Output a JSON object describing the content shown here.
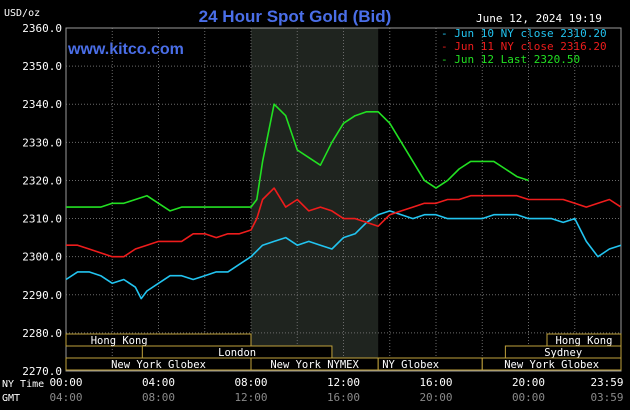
{
  "chart_data": {
    "type": "line",
    "title": "24 Hour Spot Gold (Bid)",
    "website": "www.kitco.com",
    "timestamp": "June 12, 2024 19:19",
    "ylabel": "USD/oz",
    "ylim": [
      2270,
      2360
    ],
    "y_ticks": [
      "2360.0",
      "2350.0",
      "2340.0",
      "2330.0",
      "2320.0",
      "2310.0",
      "2300.0",
      "2290.0",
      "2280.0",
      "2270.0"
    ],
    "x_axis_ny_label": "NY Time",
    "x_axis_gmt_label": "GMT",
    "x_ticks_ny": [
      "00:00",
      "04:00",
      "08:00",
      "12:00",
      "16:00",
      "20:00",
      "23:59"
    ],
    "x_ticks_gmt": [
      "04:00",
      "08:00",
      "12:00",
      "16:00",
      "20:00",
      "00:00",
      "03:59"
    ],
    "x_range_hours": [
      0,
      24
    ],
    "highlight_hours": [
      8.0,
      13.5
    ],
    "grid": true,
    "legend_position": "top-right",
    "series": [
      {
        "name": "Jun 10 NY close 2310.20",
        "color": "#22c4f0",
        "x": [
          0,
          0.5,
          1,
          1.5,
          2,
          2.5,
          3,
          3.25,
          3.5,
          4,
          4.5,
          5,
          5.5,
          6,
          6.5,
          7,
          7.5,
          8,
          8.5,
          9,
          9.5,
          10,
          10.5,
          11,
          11.5,
          12,
          12.5,
          13,
          13.5,
          14,
          14.5,
          15,
          15.5,
          16,
          16.5,
          17,
          17.5,
          18,
          18.5,
          19,
          19.5,
          20,
          20.5,
          21,
          21.5,
          22,
          22.5,
          23,
          23.5,
          24
        ],
        "y": [
          2294,
          2296,
          2296,
          2295,
          2293,
          2294,
          2292,
          2289,
          2291,
          2293,
          2295,
          2295,
          2294,
          2295,
          2296,
          2296,
          2298,
          2300,
          2303,
          2304,
          2305,
          2303,
          2304,
          2303,
          2302,
          2305,
          2306,
          2309,
          2311,
          2312,
          2311,
          2310,
          2311,
          2311,
          2310,
          2310,
          2310,
          2310,
          2311,
          2311,
          2311,
          2310,
          2310,
          2310,
          2309,
          2310,
          2304,
          2300,
          2302,
          2303
        ]
      },
      {
        "name": "Jun 11 NY close 2316.20",
        "color": "#ee1c1c",
        "x": [
          0,
          0.5,
          1,
          1.5,
          2,
          2.5,
          3,
          3.5,
          4,
          4.5,
          5,
          5.5,
          6,
          6.5,
          7,
          7.5,
          8,
          8.25,
          8.5,
          9,
          9.5,
          10,
          10.5,
          11,
          11.5,
          12,
          12.5,
          13,
          13.5,
          14,
          14.5,
          15,
          15.5,
          16,
          16.5,
          17,
          17.5,
          18,
          18.5,
          19,
          19.5,
          20,
          20.5,
          21,
          21.5,
          22,
          22.5,
          23,
          23.5,
          24
        ],
        "y": [
          2303,
          2303,
          2302,
          2301,
          2300,
          2300,
          2302,
          2303,
          2304,
          2304,
          2304,
          2306,
          2306,
          2305,
          2306,
          2306,
          2307,
          2310,
          2315,
          2318,
          2313,
          2315,
          2312,
          2313,
          2312,
          2310,
          2310,
          2309,
          2308,
          2311,
          2312,
          2313,
          2314,
          2314,
          2315,
          2315,
          2316,
          2316,
          2316,
          2316,
          2316,
          2315,
          2315,
          2315,
          2315,
          2314,
          2313,
          2314,
          2315,
          2313
        ]
      },
      {
        "name": "Jun 12 Last 2320.50",
        "color": "#22e022",
        "x": [
          0,
          0.5,
          1,
          1.5,
          2,
          2.5,
          3,
          3.5,
          4,
          4.5,
          5,
          5.5,
          6,
          6.5,
          7,
          7.5,
          8,
          8.25,
          8.5,
          9,
          9.5,
          10,
          10.5,
          11,
          11.5,
          12,
          12.5,
          13,
          13.5,
          14,
          14.5,
          15,
          15.5,
          16,
          16.5,
          17,
          17.5,
          18,
          18.5,
          19,
          19.5,
          20
        ],
        "y": [
          2313,
          2313,
          2313,
          2313,
          2314,
          2314,
          2315,
          2316,
          2314,
          2312,
          2313,
          2313,
          2313,
          2313,
          2313,
          2313,
          2313,
          2315,
          2325,
          2340,
          2337,
          2328,
          2326,
          2324,
          2330,
          2335,
          2337,
          2338,
          2338,
          2335,
          2330,
          2325,
          2320,
          2318,
          2320,
          2323,
          2325,
          2325,
          2325,
          2323,
          2321,
          2320
        ]
      }
    ],
    "sessions_row1": [
      {
        "label": "Hong Kong",
        "start": -1,
        "end": 8,
        "align": "center",
        "label_at": 2.3
      },
      {
        "label": "Hong Kong",
        "start": 20.8,
        "end": 24,
        "align": "center"
      }
    ],
    "sessions_row2": [
      {
        "label": "London",
        "start": 3.3,
        "end": 11.5,
        "align": "center"
      },
      {
        "label": "Sydney",
        "start": 19.0,
        "end": 24,
        "align": "center"
      }
    ],
    "sessions_row3": [
      {
        "label": "New York Globex",
        "start": 0,
        "end": 8.0,
        "align": "center"
      },
      {
        "label": "New York NYMEX",
        "start": 8.0,
        "end": 13.5,
        "align": "center"
      },
      {
        "label": "NY Globex",
        "start": 13.5,
        "end": 18.0,
        "align": "left"
      },
      {
        "label": "New York Globex",
        "start": 18.0,
        "end": 24,
        "align": "center"
      }
    ]
  }
}
